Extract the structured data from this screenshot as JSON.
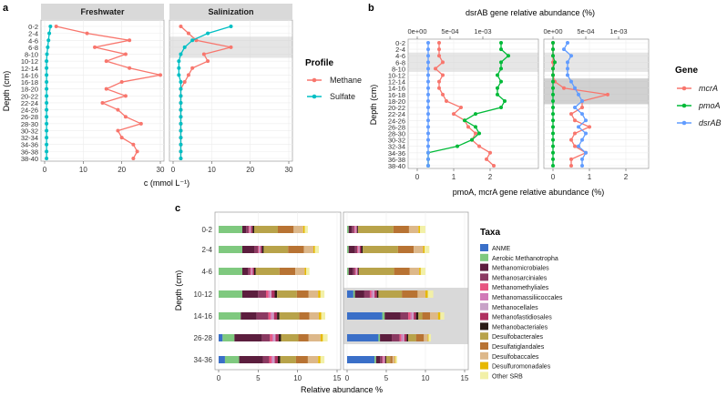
{
  "panel_labels": [
    "a",
    "b",
    "c"
  ],
  "chart_data": [
    {
      "type": "line",
      "panel": "a",
      "facets": [
        "Freshwater",
        "Salinization"
      ],
      "ylabel": "Depth (cm)",
      "xlabel": "c (mmol L⁻¹)",
      "xlim": [
        0,
        30
      ],
      "xticks": [
        0,
        10,
        20,
        30
      ],
      "depths": [
        "0-2",
        "2-4",
        "4-6",
        "6-8",
        "8-10",
        "10-12",
        "12-14",
        "14-16",
        "16-18",
        "18-20",
        "20-22",
        "22-24",
        "24-26",
        "26-28",
        "28-30",
        "30-32",
        "32-34",
        "34-36",
        "36-38",
        "38-40"
      ],
      "highlight_depths": {
        "Salinization": [
          [
            "4-6",
            "8-10"
          ]
        ]
      },
      "legend_title": "Profile",
      "series": [
        {
          "name": "Methane",
          "color": "#F8766D",
          "values": {
            "Freshwater": [
              3,
              11,
              22,
              13,
              21,
              16,
              22,
              30,
              20,
              16,
              21,
              15,
              19,
              21,
              25,
              19,
              20,
              23,
              24,
              23
            ],
            "Salinization": [
              2,
              4,
              6,
              15,
              8,
              9,
              5,
              4,
              3,
              2,
              2,
              2,
              2,
              2,
              2,
              2,
              2,
              2,
              2,
              2
            ]
          }
        },
        {
          "name": "Sulfate",
          "color": "#00BFC4",
          "values": {
            "Freshwater": [
              1.5,
              1.2,
              1,
              0.8,
              0.6,
              0.5,
              0.5,
              0.5,
              0.5,
              0.5,
              0.5,
              0.5,
              0.5,
              0.5,
              0.5,
              0.5,
              0.5,
              0.5,
              0.5,
              0.5
            ],
            "Salinization": [
              15,
              9,
              5,
              3,
              2,
              1.5,
              1.5,
              1.5,
              2,
              2,
              2,
              2,
              2,
              2,
              2,
              2,
              2,
              2,
              2,
              2
            ]
          }
        }
      ]
    },
    {
      "type": "line",
      "panel": "b",
      "ylabel": "Depth (cm)",
      "top_xlabel": "dsrAB gene relative abundance (%)",
      "bottom_xlabel": "pmoA, mcrA gene relative abundance (%)",
      "top_ticks": [
        "0e+00",
        "5e-04",
        "1e-03"
      ],
      "bottom_ticks": [
        "0",
        "1",
        "2"
      ],
      "xlim": [
        0,
        2.8
      ],
      "depths": [
        "0-2",
        "2-4",
        "4-6",
        "6-8",
        "8-10",
        "10-12",
        "12-14",
        "14-16",
        "16-18",
        "18-20",
        "20-22",
        "22-24",
        "24-26",
        "26-28",
        "28-30",
        "30-32",
        "32-34",
        "34-36",
        "36-38",
        "38-40"
      ],
      "highlight_depths": {
        "left": [
          [
            "4-6",
            "8-10"
          ]
        ],
        "right": [
          [
            "4-6",
            "8-10"
          ],
          [
            "12-14",
            "18-20"
          ]
        ]
      },
      "legend_title": "Gene",
      "series": [
        {
          "name": "mcrA",
          "color": "#F8766D",
          "values": {
            "left": [
              0.6,
              0.6,
              0.6,
              0.7,
              0.5,
              0.7,
              0.6,
              0.6,
              0.7,
              0.8,
              1.2,
              1.0,
              1.3,
              1.4,
              1.6,
              1.5,
              1.7,
              2.0,
              1.9,
              2.1
            ],
            "right": [
              0,
              0,
              0,
              0,
              0,
              0,
              0.05,
              0.3,
              1.5,
              0.8,
              0.8,
              0.5,
              0.6,
              1.0,
              0.6,
              0.5,
              0.6,
              0.9,
              0.5,
              0.5
            ]
          }
        },
        {
          "name": "pmoA",
          "color": "#00BA38",
          "values": {
            "left": [
              2.3,
              2.3,
              2.5,
              2.3,
              2.3,
              2.2,
              2.3,
              2.2,
              2.2,
              2.4,
              2.3,
              1.6,
              1.3,
              1.6,
              1.7,
              1.5,
              1.1,
              0.3,
              0.3,
              0.3
            ],
            "right": [
              0,
              0,
              0,
              0.05,
              0,
              0,
              0,
              0,
              0,
              0,
              0,
              0,
              0,
              0,
              0,
              0,
              0,
              0,
              0,
              0
            ]
          }
        },
        {
          "name": "dsrAB",
          "color": "#619CFF",
          "values": {
            "left": [
              0.3,
              0.3,
              0.3,
              0.3,
              0.3,
              0.3,
              0.3,
              0.3,
              0.3,
              0.3,
              0.3,
              0.3,
              0.3,
              0.3,
              0.3,
              0.3,
              0.3,
              0.3,
              0.3,
              0.3
            ],
            "right": [
              0.4,
              0.3,
              0.5,
              0.4,
              0.4,
              0.4,
              0.5,
              0.6,
              0.7,
              0.8,
              0.6,
              0.8,
              0.9,
              0.7,
              0.9,
              0.8,
              0.7,
              0.9,
              0.8,
              0.8
            ]
          }
        }
      ]
    },
    {
      "type": "bar",
      "panel": "c",
      "orientation": "horizontal",
      "stacked": true,
      "xlabel": "Relative abundance %",
      "ylabel": "Depth (cm)",
      "xlim": [
        0,
        15
      ],
      "xticks": [
        0,
        5,
        10,
        15
      ],
      "categories": [
        "0-2",
        "2-4",
        "4-6",
        "10-12",
        "14-16",
        "26-28",
        "34-36"
      ],
      "highlight_categories": {
        "right": [
          "10-12",
          "14-16",
          "26-28"
        ]
      },
      "legend_title": "Taxa",
      "series": [
        {
          "name": "ANME",
          "color": "#3A6FC8",
          "left": [
            0,
            0,
            0,
            0,
            0,
            0.5,
            0.8
          ],
          "right": [
            0,
            0,
            0,
            0.8,
            4.5,
            4.0,
            3.5
          ]
        },
        {
          "name": "Aerobic Methanotropha",
          "color": "#7FC97F",
          "left": [
            3,
            3,
            3,
            3,
            2.8,
            1.5,
            1.8
          ],
          "right": [
            0.2,
            0.2,
            0.2,
            0.2,
            0.3,
            0.2,
            0.2
          ]
        },
        {
          "name": "Methanomicrobiales",
          "color": "#5C1E3E",
          "left": [
            0.5,
            1.5,
            0.7,
            2,
            2,
            3.5,
            3
          ],
          "right": [
            0.4,
            0.8,
            0.5,
            1.2,
            2,
            1.5,
            0.5
          ]
        },
        {
          "name": "Methanosarciniales",
          "color": "#8B3A62",
          "left": [
            0.3,
            0.5,
            0.3,
            1,
            1.5,
            1,
            0.8
          ],
          "right": [
            0.3,
            0.3,
            0.3,
            0.7,
            1,
            1,
            0.3
          ]
        },
        {
          "name": "Methanomethyliales",
          "color": "#E75480",
          "left": [
            0.1,
            0.1,
            0.1,
            0.3,
            0.3,
            0.3,
            0.3
          ],
          "right": [
            0.1,
            0.1,
            0.1,
            0.2,
            0.3,
            0.2,
            0.1
          ]
        },
        {
          "name": "Methanomassiliicoccales",
          "color": "#D17AB8",
          "left": [
            0.1,
            0.1,
            0.1,
            0.2,
            0.2,
            0.2,
            0.2
          ],
          "right": [
            0.1,
            0.1,
            0.1,
            0.2,
            0.2,
            0.2,
            0.1
          ]
        },
        {
          "name": "Methanocellales",
          "color": "#C8A2C8",
          "left": [
            0.1,
            0.1,
            0.1,
            0.2,
            0.2,
            0.2,
            0.2
          ],
          "right": [
            0.1,
            0.1,
            0.1,
            0.2,
            0.2,
            0.2,
            0.1
          ]
        },
        {
          "name": "Methanofastidiosales",
          "color": "#B03060",
          "left": [
            0.2,
            0.2,
            0.2,
            0.4,
            0.4,
            0.4,
            0.4
          ],
          "right": [
            0.1,
            0.2,
            0.1,
            0.3,
            0.3,
            0.3,
            0.1
          ]
        },
        {
          "name": "Methanobacteriales",
          "color": "#2B1B17",
          "left": [
            0.2,
            0.2,
            0.2,
            0.3,
            0.3,
            0.3,
            0.3
          ],
          "right": [
            0.1,
            0.2,
            0.1,
            0.2,
            0.3,
            0.2,
            0.1
          ]
        },
        {
          "name": "Desulfobacterales",
          "color": "#B8A34A",
          "left": [
            3,
            3.1,
            3,
            2.5,
            2.5,
            2.2,
            2
          ],
          "right": [
            4.5,
            4.5,
            4.5,
            3,
            0.5,
            1.0,
            0.5
          ]
        },
        {
          "name": "Desulfatiglandales",
          "color": "#B87333",
          "left": [
            2,
            2,
            2,
            1.5,
            1.3,
            1.3,
            1.5
          ],
          "right": [
            2,
            2,
            2,
            2,
            1,
            1,
            0.3
          ]
        },
        {
          "name": "Desulfobaccales",
          "color": "#DDB88A",
          "left": [
            1.2,
            1.2,
            1.2,
            1.2,
            1.2,
            1.5,
            1.3
          ],
          "right": [
            1.2,
            1.2,
            1.2,
            1,
            1,
            0.5,
            0.3
          ]
        },
        {
          "name": "Desulfuromonadales",
          "color": "#E6B800",
          "left": [
            0.2,
            0.2,
            0.2,
            0.3,
            0.3,
            0.3,
            0.3
          ],
          "right": [
            0.2,
            0.2,
            0.2,
            0.3,
            0.3,
            0.1,
            0.1
          ]
        },
        {
          "name": "Other SRB",
          "color": "#F2F0A8",
          "left": [
            0.4,
            0.5,
            0.4,
            0.5,
            0.5,
            0.6,
            0.5
          ],
          "right": [
            0.7,
            0.6,
            0.6,
            0.7,
            0.5,
            0.3,
            0.2
          ]
        }
      ]
    }
  ]
}
